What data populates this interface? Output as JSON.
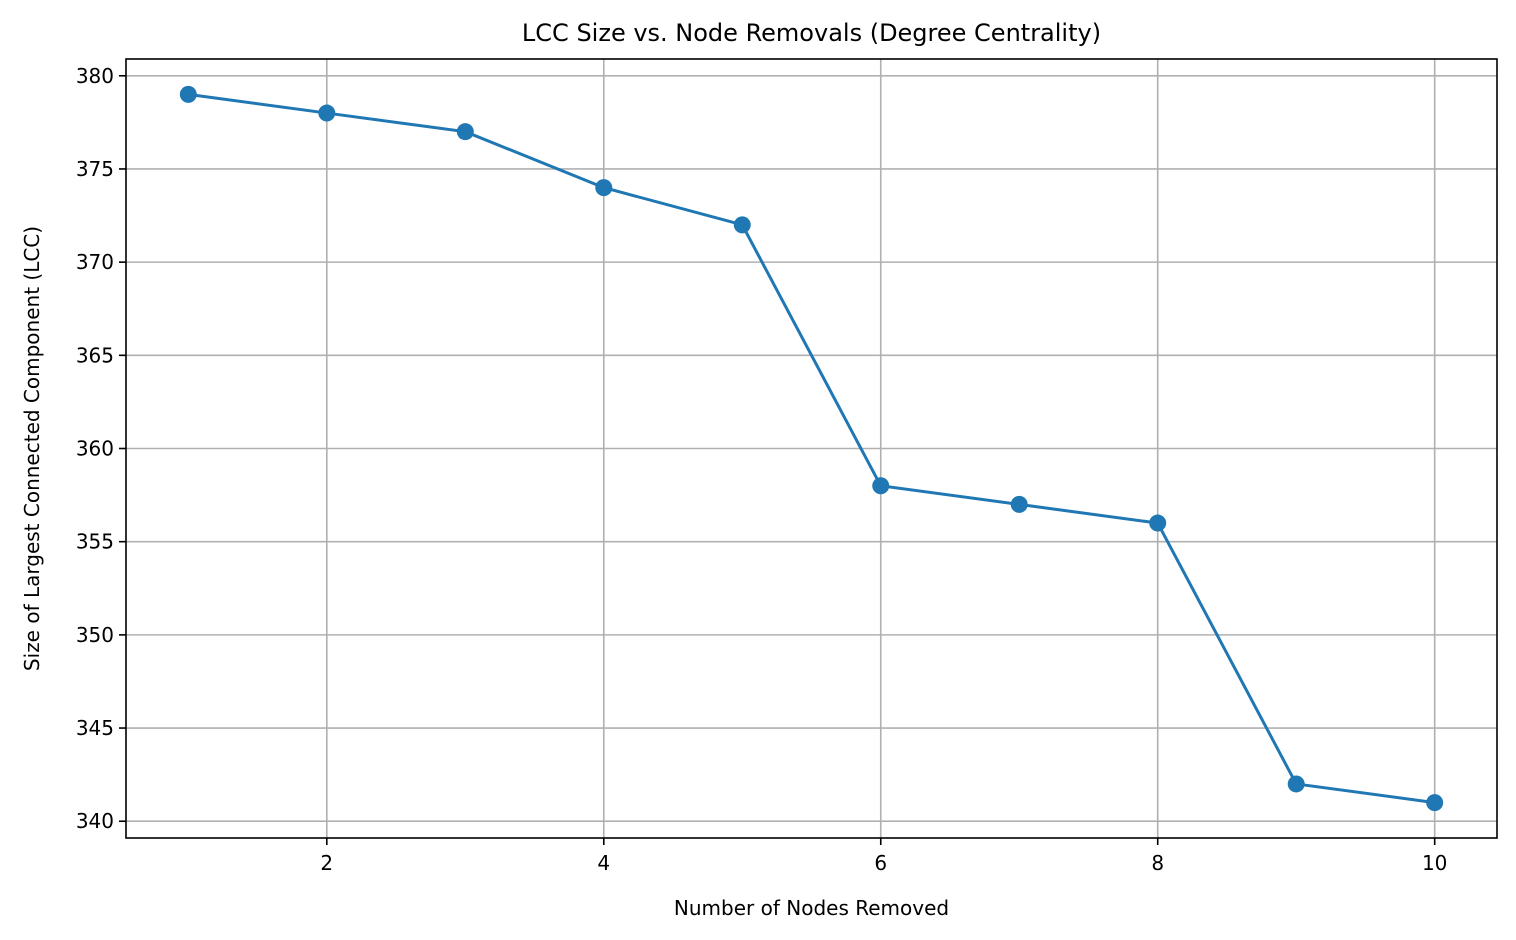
{
  "chart_data": {
    "type": "line",
    "title": "LCC Size vs. Node Removals (Degree Centrality)",
    "xlabel": "Number of Nodes Removed",
    "ylabel": "Size of Largest Connected Component (LCC)",
    "x": [
      1,
      2,
      3,
      4,
      5,
      6,
      7,
      8,
      9,
      10
    ],
    "series": [
      {
        "values": [
          379,
          378,
          377,
          374,
          372,
          358,
          357,
          356,
          342,
          341
        ],
        "color": "#1f77b4",
        "marker": "circle"
      }
    ],
    "xlim": [
      0.55,
      10.45
    ],
    "ylim": [
      339.1,
      380.9
    ],
    "xticks": [
      2,
      4,
      6,
      8,
      10
    ],
    "yticks": [
      340,
      345,
      350,
      355,
      360,
      365,
      370,
      375,
      380
    ],
    "grid": true,
    "legend": false
  }
}
